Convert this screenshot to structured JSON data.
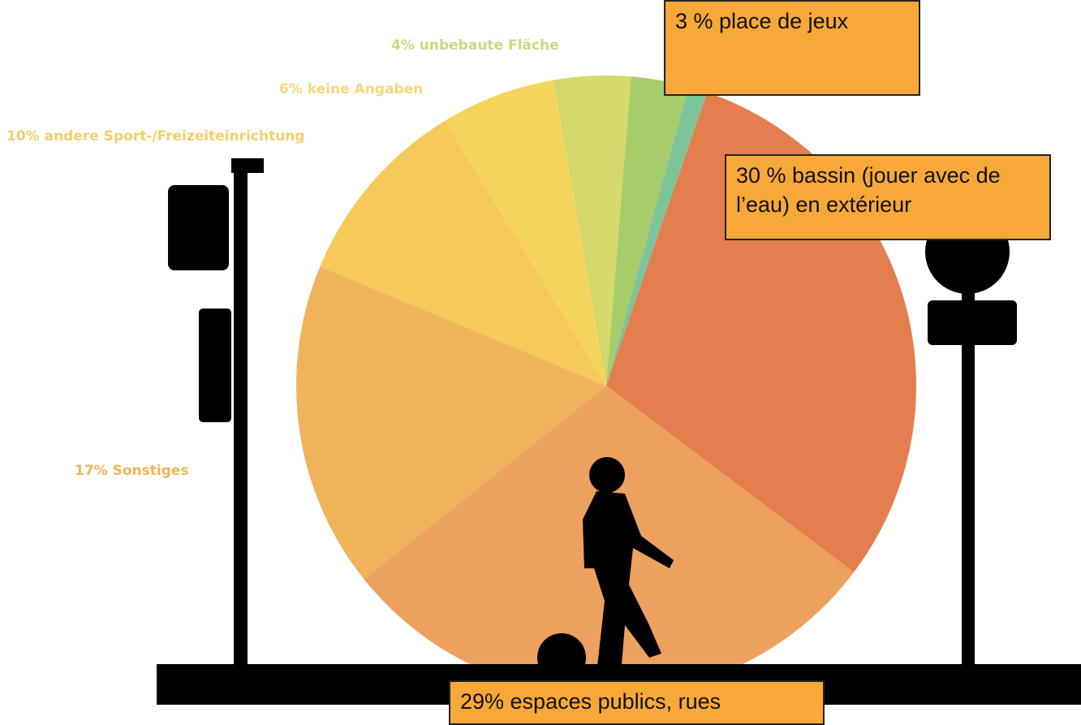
{
  "chart_data": {
    "type": "pie",
    "categories": [
      null,
      "30 % bassin (jouer avec de l’eau) en extérieur",
      "29% espaces publics, rues",
      "17% Sonstiges",
      "10% andere Sport-/Freizeiteinrichtung",
      "6% keine Angaben",
      "4% unbebaute Fläche",
      "3 % place de jeux"
    ],
    "values": [
      1,
      30,
      29,
      17,
      10,
      6,
      4,
      3
    ],
    "colors": [
      "#7ec49a",
      "#e57e4f",
      "#eca25e",
      "#f0b35c",
      "#f5c95a",
      "#f5d55e",
      "#d5d96c",
      "#a7cc6a"
    ]
  }
}
